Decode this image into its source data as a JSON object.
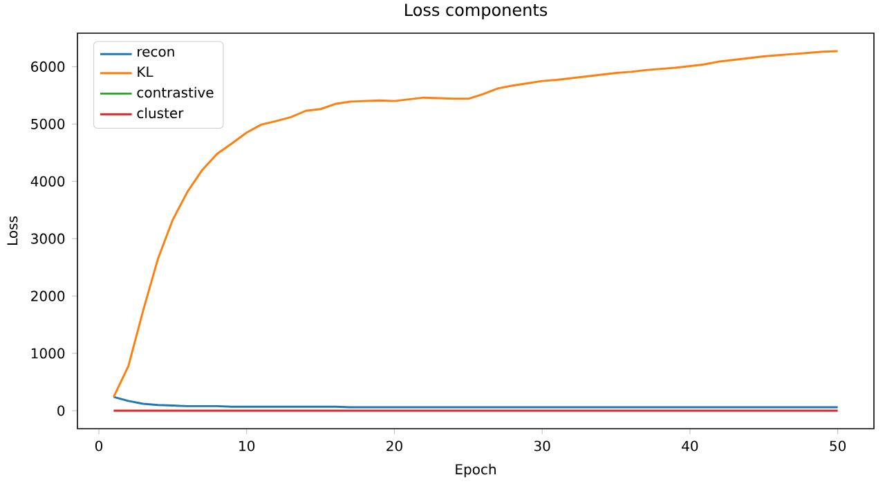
{
  "chart_data": {
    "type": "line",
    "title": "Loss components",
    "xlabel": "Epoch",
    "ylabel": "Loss",
    "x": [
      1,
      2,
      3,
      4,
      5,
      6,
      7,
      8,
      9,
      10,
      11,
      12,
      13,
      14,
      15,
      16,
      17,
      18,
      19,
      20,
      21,
      22,
      23,
      24,
      25,
      26,
      27,
      28,
      29,
      30,
      31,
      32,
      33,
      34,
      35,
      36,
      37,
      38,
      39,
      40,
      41,
      42,
      43,
      44,
      45,
      46,
      47,
      48,
      49,
      50
    ],
    "series": [
      {
        "name": "recon",
        "color": "#1f77b4",
        "values": [
          240,
          170,
          120,
          100,
          90,
          80,
          80,
          80,
          70,
          70,
          70,
          70,
          70,
          70,
          70,
          70,
          60,
          60,
          60,
          60,
          60,
          60,
          60,
          60,
          60,
          60,
          60,
          60,
          60,
          60,
          60,
          60,
          60,
          60,
          60,
          60,
          60,
          60,
          60,
          60,
          60,
          60,
          60,
          60,
          60,
          60,
          60,
          60,
          60,
          60
        ]
      },
      {
        "name": "KL",
        "color": "#ff7f0e",
        "values": [
          240,
          780,
          1750,
          2650,
          3330,
          3820,
          4200,
          4480,
          4660,
          4850,
          4990,
          5050,
          5120,
          5230,
          5260,
          5350,
          5390,
          5400,
          5410,
          5400,
          5430,
          5460,
          5450,
          5440,
          5440,
          5520,
          5620,
          5670,
          5710,
          5750,
          5770,
          5800,
          5830,
          5860,
          5890,
          5910,
          5940,
          5960,
          5980,
          6010,
          6040,
          6090,
          6120,
          6150,
          6180,
          6200,
          6220,
          6240,
          6260,
          6270
        ]
      },
      {
        "name": "contrastive",
        "color": "#2ca02c",
        "values": [
          null,
          null,
          null,
          null,
          null,
          null,
          null,
          null,
          null,
          null,
          null,
          null,
          null,
          null,
          null,
          null,
          null,
          null,
          null,
          null,
          null,
          null,
          null,
          null,
          null,
          null,
          null,
          null,
          null,
          null,
          null,
          null,
          null,
          null,
          null,
          null,
          null,
          null,
          null,
          null,
          null,
          null,
          null,
          null,
          null,
          null,
          null,
          null,
          null,
          null
        ]
      },
      {
        "name": "cluster",
        "color": "#d62728",
        "values": [
          0,
          0,
          0,
          0,
          0,
          0,
          0,
          0,
          0,
          0,
          0,
          0,
          0,
          0,
          0,
          0,
          0,
          0,
          0,
          0,
          0,
          0,
          0,
          0,
          0,
          0,
          0,
          0,
          0,
          0,
          0,
          0,
          0,
          0,
          0,
          0,
          0,
          0,
          0,
          0,
          0,
          0,
          0,
          0,
          0,
          0,
          0,
          0,
          0,
          0
        ]
      }
    ],
    "xlim": [
      -1.45,
      52.45
    ],
    "ylim": [
      -313.5,
      6583.5
    ],
    "xticks": [
      0,
      10,
      20,
      30,
      40,
      50
    ],
    "yticks": [
      0,
      1000,
      2000,
      3000,
      4000,
      5000,
      6000
    ],
    "legend": "top left",
    "grid": false,
    "marker": "none",
    "line_style": "solid"
  }
}
